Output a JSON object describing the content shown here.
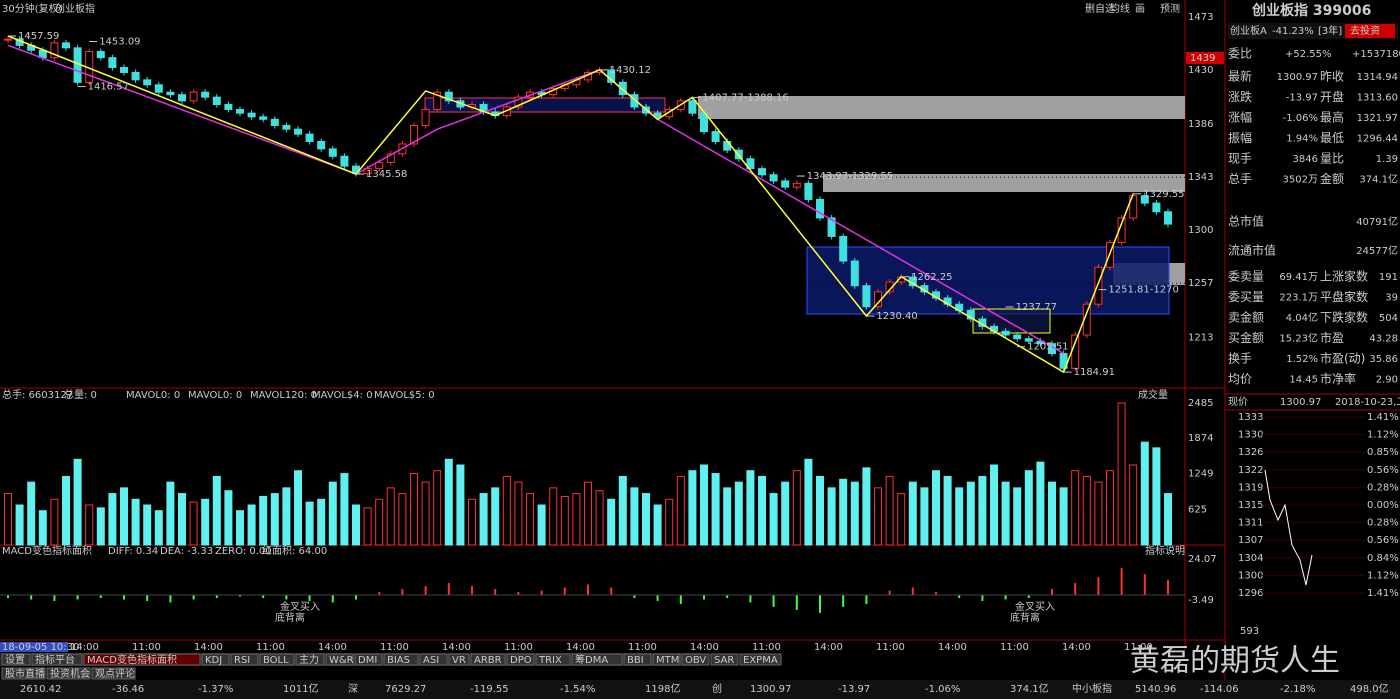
{
  "header": {
    "mode": "30分钟(复权)",
    "name": "创业板指",
    "tools": [
      "删自选",
      "均线",
      "画",
      "预测"
    ]
  },
  "price": {
    "ticks": [
      1473,
      1430,
      1386,
      1343,
      1300,
      1257,
      1213
    ],
    "current_tag": "1439",
    "closes": [
      1455,
      1450,
      1446,
      1440,
      1452,
      1448,
      1420,
      1445,
      1440,
      1432,
      1428,
      1422,
      1418,
      1412,
      1410,
      1405,
      1412,
      1408,
      1402,
      1398,
      1395,
      1392,
      1390,
      1385,
      1382,
      1378,
      1372,
      1366,
      1360,
      1352,
      1346,
      1350,
      1355,
      1362,
      1370,
      1385,
      1398,
      1412,
      1405,
      1400,
      1402,
      1396,
      1393,
      1400,
      1408,
      1412,
      1410,
      1415,
      1418,
      1422,
      1428,
      1430,
      1420,
      1410,
      1400,
      1395,
      1392,
      1398,
      1405,
      1395,
      1380,
      1372,
      1365,
      1358,
      1350,
      1345,
      1340,
      1335,
      1338,
      1325,
      1310,
      1295,
      1275,
      1255,
      1238,
      1250,
      1258,
      1262,
      1255,
      1250,
      1245,
      1240,
      1235,
      1228,
      1222,
      1218,
      1215,
      1212,
      1210,
      1208,
      1200,
      1188,
      1215,
      1240,
      1270,
      1290,
      1310,
      1328,
      1322,
      1315,
      1305
    ],
    "pivots": [
      {
        "text": "1457.59",
        "index": 0,
        "value": 1457.59
      },
      {
        "text": "1453.09",
        "index": 7,
        "value": 1453.09
      },
      {
        "text": "1416.57",
        "index": 6,
        "value": 1416.57
      },
      {
        "text": "1345.58",
        "index": 30,
        "value": 1345.58
      },
      {
        "text": "1430.12",
        "index": 51,
        "value": 1430.12
      },
      {
        "text": "1407.77-1388.16",
        "index": 59,
        "value": 1407.77
      },
      {
        "text": "1343.97-1329.55",
        "index": 68,
        "value": 1343.97
      },
      {
        "text": "1262.25",
        "index": 77,
        "value": 1262.25
      },
      {
        "text": "1230.40",
        "index": 74,
        "value": 1230.4
      },
      {
        "text": "1237.77",
        "index": 86,
        "value": 1237.77
      },
      {
        "text": "1205.51",
        "index": 87,
        "value": 1205.51
      },
      {
        "text": "1184.91",
        "index": 91,
        "value": 1184.91
      },
      {
        "text": "1251.81-1270",
        "index": 94,
        "value": 1251.81
      },
      {
        "text": "1329.55",
        "index": 97,
        "value": 1329.55
      }
    ],
    "yellow": [
      [
        0,
        1457.59
      ],
      [
        30,
        1345.58
      ],
      [
        36,
        1413
      ],
      [
        42,
        1393
      ],
      [
        51,
        1430.12
      ],
      [
        56,
        1390
      ],
      [
        59,
        1407.77
      ],
      [
        74,
        1230.4
      ],
      [
        77,
        1262.25
      ],
      [
        91,
        1184.91
      ],
      [
        97,
        1329.55
      ]
    ],
    "pink": [
      [
        0,
        1450
      ],
      [
        30,
        1345.58
      ],
      [
        37,
        1382
      ],
      [
        51,
        1430.12
      ],
      [
        56,
        1390
      ],
      [
        91,
        1200
      ]
    ]
  },
  "volume": {
    "legend": [
      "总手: 6603127",
      "总量: 0",
      "MAVOL0: 0",
      "MAVOL0: 0",
      "MAVOL120: 0",
      "MAVOL$4: 0",
      "MAVOL$5: 0"
    ],
    "title": "成交量",
    "ticks": [
      2485,
      1874,
      1249,
      625
    ],
    "values": [
      900,
      700,
      1100,
      600,
      800,
      1200,
      1500,
      700,
      650,
      900,
      1000,
      800,
      700,
      600,
      1100,
      900,
      750,
      800,
      1200,
      950,
      600,
      700,
      850,
      900,
      1000,
      1300,
      750,
      800,
      1100,
      1250,
      700,
      650,
      800,
      1000,
      900,
      1250,
      1100,
      1300,
      1500,
      1400,
      800,
      900,
      1000,
      1200,
      1100,
      900,
      700,
      1000,
      850,
      900,
      1100,
      950,
      800,
      1200,
      1000,
      900,
      700,
      800,
      1200,
      1300,
      1400,
      1250,
      1000,
      1100,
      1300,
      1200,
      900,
      1100,
      1300,
      1500,
      1200,
      1000,
      1150,
      1100,
      1350,
      1000,
      1200,
      900,
      1100,
      1000,
      1300,
      1200,
      1000,
      1100,
      1200,
      1400,
      1100,
      1000,
      1300,
      1450,
      1100,
      1000,
      1300,
      1200,
      1100,
      1300,
      2485,
      1400,
      1800,
      1700,
      900
    ]
  },
  "macd": {
    "legend": [
      "MACD变色指标面积",
      "DIFF: 0.34",
      "DEA: -3.33",
      "ZERO: 0.00",
      "红面积: 64.00"
    ],
    "ticks": [
      24.07,
      -3.49
    ],
    "help": "指标说明",
    "hist": [
      -2,
      -3,
      -4,
      -3,
      -2,
      -3,
      -4,
      -5,
      -3,
      -2,
      -1,
      -2,
      -3,
      -4,
      -5,
      -3,
      2,
      4,
      6,
      8,
      6,
      4,
      2,
      3,
      5,
      7,
      5,
      -2,
      -4,
      -6,
      -3,
      -2,
      -5,
      -8,
      -10,
      -12,
      -8,
      -6,
      3,
      5,
      2,
      -2,
      -4,
      -3,
      -2,
      4,
      8,
      12,
      18,
      14,
      10
    ],
    "notes": [
      {
        "buy": "金叉买入",
        "div": "底背离"
      },
      {
        "buy": "金叉买入",
        "div": "底背离"
      }
    ]
  },
  "time_axis": {
    "start": "18-09-05 10:30",
    "labels": [
      "14:00",
      "11:00",
      "14:00",
      "11:00",
      "14:00",
      "11:00",
      "14:00",
      "11:00",
      "14:00",
      "11:00",
      "14:00",
      "11:00",
      "14:00",
      "11:00",
      "14:00",
      "11:00",
      "14:00",
      "11:00"
    ]
  },
  "tabs": {
    "row1": [
      "设置",
      "指标平台",
      "MACD变色指标面积",
      "KDJ",
      "RSI",
      "BOLL",
      "主力",
      "W&R",
      "DMI",
      "BIAS",
      "ASI",
      "VR",
      "ARBR",
      "DPO",
      "TRIX",
      "筹DMA",
      "BBI",
      "MTM",
      "OBV",
      "SAR",
      "EXPMA"
    ],
    "row2": [
      "股市直播",
      "投资机会",
      "观点评论"
    ]
  },
  "quote": {
    "title": "创业板指 399006",
    "sub": [
      "创业板A",
      "-41.23%",
      "[3年]"
    ],
    "invest": "去投资",
    "weibi": [
      "委比",
      "+52.55%",
      "+1537180"
    ],
    "rows1": [
      [
        "最新",
        "1300.97",
        "昨收",
        "1314.94"
      ],
      [
        "涨跌",
        "-13.97",
        "开盘",
        "1313.60"
      ],
      [
        "涨幅",
        "-1.06%",
        "最高",
        "1321.97"
      ],
      [
        "振幅",
        "1.94%",
        "最低",
        "1296.44"
      ],
      [
        "现手",
        "3846",
        "量比",
        "1.39"
      ],
      [
        "总手",
        "3502万",
        "金额",
        "374.1亿"
      ]
    ],
    "caps": [
      [
        "总市值",
        "40791亿"
      ],
      [
        "流通市值",
        "24577亿"
      ]
    ],
    "rows2": [
      [
        "委卖量",
        "69.41万",
        "上涨家数",
        "191"
      ],
      [
        "委买量",
        "223.1万",
        "平盘家数",
        "39"
      ],
      [
        "卖金额",
        "4.04亿",
        "下跌家数",
        "504"
      ],
      [
        "买金额",
        "15.23亿",
        "市盈",
        "43.28"
      ],
      [
        "换手",
        "1.52%",
        "市盈(动)",
        "35.86"
      ],
      [
        "均价",
        "14.45",
        "市净率",
        "2.90"
      ]
    ],
    "mini_head": [
      "现价",
      "1300.97",
      "2018-10-23,二"
    ],
    "mini_left": [
      "1333",
      "1330",
      "1326",
      "1322",
      "1319",
      "1315",
      "1311",
      "1307",
      "1304",
      "1300",
      "1296"
    ],
    "mini_right": [
      "1.41%",
      "1.12%",
      "0.85%",
      "0.56%",
      "0.28%",
      "0.00%",
      "0.28%",
      "0.56%",
      "0.84%",
      "1.12%",
      "1.41%"
    ],
    "mini_vol": "593"
  },
  "status": [
    "2610.42",
    "-36.46",
    "-1.37%",
    "1011亿",
    "深",
    "7629.27",
    "-119.55",
    "-1.54%",
    "1198亿",
    "创",
    "1300.97",
    "-13.97",
    "-1.06%",
    "374.1亿",
    "中小板指",
    "5140.96",
    "-114.06",
    "-2.18%",
    "498.0亿"
  ],
  "watermark": "黄磊的期货人生"
}
